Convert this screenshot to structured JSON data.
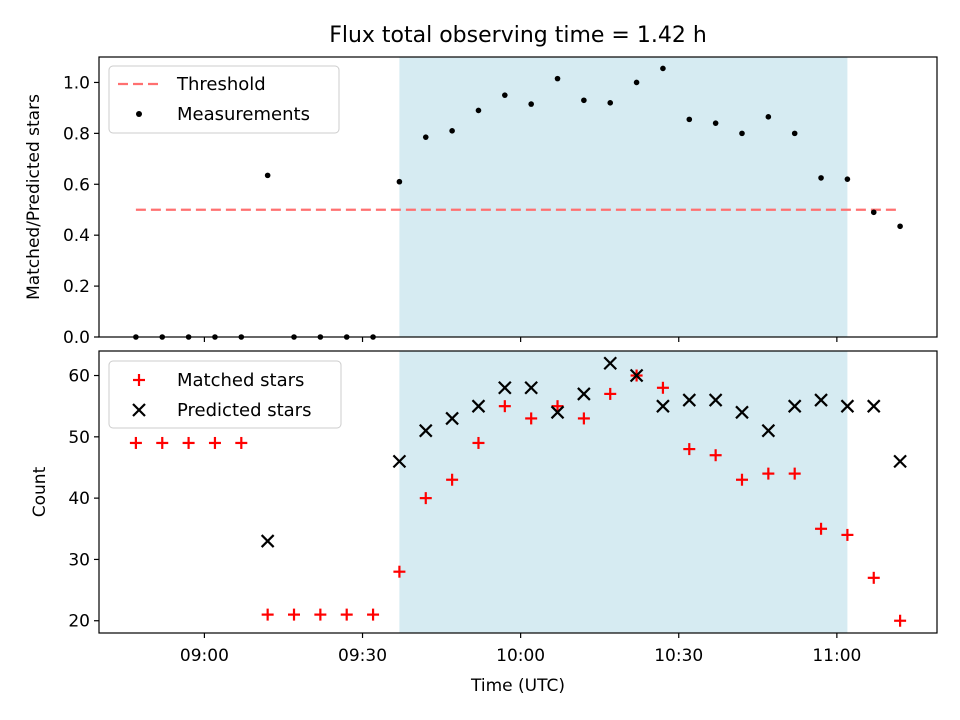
{
  "chart_data": {
    "title": "Flux total observing time = 1.42 h",
    "x_axis": {
      "label": "Time (UTC)",
      "range": [
        "08:40",
        "11:19"
      ],
      "ticks": [
        "09:00",
        "09:30",
        "10:00",
        "10:30",
        "11:00"
      ]
    },
    "observing_window": {
      "start": "09:37",
      "end": "11:02",
      "color": "#add8e6"
    },
    "x": [
      "08:47",
      "08:52",
      "08:57",
      "09:02",
      "09:07",
      "09:12",
      "09:17",
      "09:22",
      "09:27",
      "09:32",
      "09:37",
      "09:42",
      "09:47",
      "09:52",
      "09:57",
      "10:02",
      "10:07",
      "10:12",
      "10:17",
      "10:22",
      "10:27",
      "10:32",
      "10:37",
      "10:42",
      "10:47",
      "10:52",
      "10:57",
      "11:02",
      "11:07",
      "11:12"
    ],
    "panels": [
      {
        "type": "scatter",
        "ylabel": "Matched/Predicted stars",
        "ylim": [
          0,
          1.1
        ],
        "yticks": [
          "0.0",
          "0.2",
          "0.4",
          "0.6",
          "0.8",
          "1.0"
        ],
        "legend_position": "upper-left",
        "threshold": {
          "name": "Threshold",
          "value": 0.5,
          "x_start": "08:47",
          "x_end": "11:12",
          "color": "#ff7070"
        },
        "series": [
          {
            "name": "Measurements",
            "color": "#000000",
            "marker": "dot",
            "values": [
              0,
              0,
              0,
              0,
              0,
              0.635,
              0,
              0,
              0,
              0,
              0.61,
              0.785,
              0.81,
              0.89,
              0.95,
              0.915,
              1.015,
              0.93,
              0.92,
              1.0,
              1.055,
              0.855,
              0.84,
              0.8,
              0.865,
              0.8,
              0.625,
              0.62,
              0.49,
              0.435
            ]
          }
        ]
      },
      {
        "type": "scatter",
        "ylabel": "Count",
        "ylim": [
          18,
          64
        ],
        "yticks": [
          "20",
          "30",
          "40",
          "50",
          "60"
        ],
        "legend_position": "upper-left",
        "series": [
          {
            "name": "Matched stars",
            "color": "#ff0000",
            "marker": "plus",
            "values": [
              49,
              49,
              49,
              49,
              49,
              21,
              21,
              21,
              21,
              21,
              28,
              40,
              43,
              49,
              55,
              53,
              55,
              53,
              57,
              60,
              58,
              48,
              47,
              43,
              44,
              44,
              35,
              34,
              27,
              20
            ]
          },
          {
            "name": "Predicted stars",
            "color": "#000000",
            "marker": "x",
            "values": [
              null,
              null,
              null,
              null,
              null,
              33,
              null,
              null,
              null,
              null,
              46,
              51,
              53,
              55,
              58,
              58,
              54,
              57,
              62,
              60,
              55,
              56,
              56,
              54,
              51,
              55,
              56,
              55,
              55,
              46
            ]
          }
        ]
      }
    ]
  }
}
